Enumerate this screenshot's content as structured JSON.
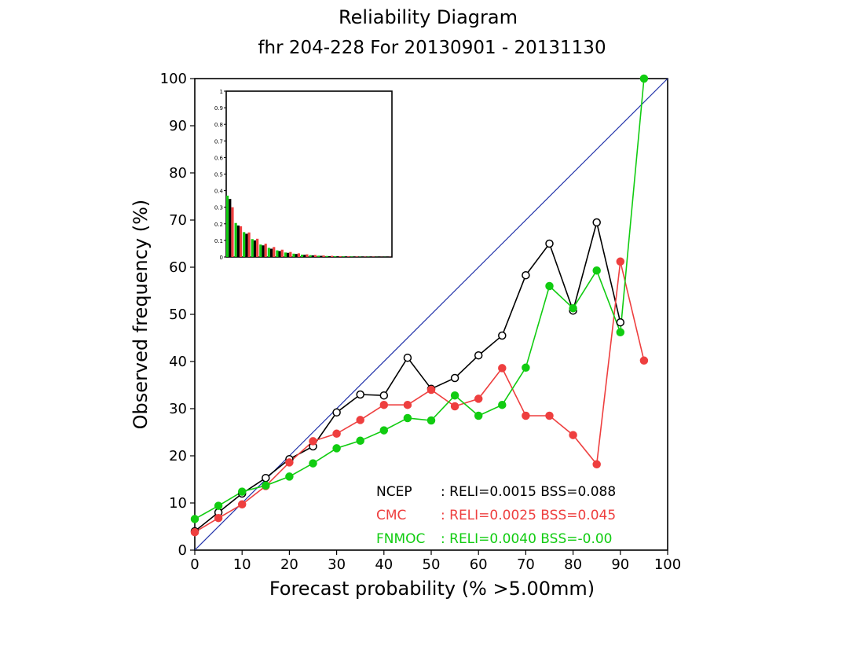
{
  "chart_data": {
    "type": "line",
    "title": "Reliability Diagram",
    "subtitle": "fhr 204-228 For 20130901 - 20131130",
    "xlabel": "Forecast probability (% >5.00mm)",
    "ylabel": "Observed frequency (%)",
    "xlim": [
      0,
      100
    ],
    "ylim": [
      0,
      100
    ],
    "xticks": [
      "0",
      "10",
      "20",
      "30",
      "40",
      "50",
      "60",
      "70",
      "80",
      "90",
      "100"
    ],
    "yticks": [
      "0",
      "10",
      "20",
      "30",
      "40",
      "50",
      "60",
      "70",
      "80",
      "90",
      "100"
    ],
    "diagonal_color": "#2233aa",
    "series": [
      {
        "name": "NCEP",
        "color": "#000000",
        "marker": "open-circle",
        "x": [
          0,
          5,
          10,
          15,
          20,
          25,
          30,
          35,
          40,
          45,
          50,
          55,
          60,
          65,
          70,
          75,
          80,
          85,
          90
        ],
        "y": [
          4,
          8,
          12,
          15.3,
          19.3,
          22,
          29.2,
          33,
          32.8,
          40.8,
          34.2,
          36.5,
          41.3,
          45.5,
          58.3,
          65,
          50.8,
          69.5,
          48.3
        ]
      },
      {
        "name": "CMC",
        "color": "#ee3f3f",
        "marker": "filled-circle",
        "x": [
          0,
          5,
          10,
          15,
          20,
          25,
          30,
          35,
          40,
          45,
          50,
          55,
          60,
          65,
          70,
          75,
          80,
          85,
          90,
          95
        ],
        "y": [
          3.8,
          6.8,
          9.7,
          13.6,
          18.6,
          23.1,
          24.7,
          27.6,
          30.8,
          30.8,
          34,
          30.5,
          32.1,
          38.6,
          28.5,
          28.5,
          24.4,
          18.2,
          61.2,
          40.2
        ]
      },
      {
        "name": "FNMOC",
        "color": "#11cc11",
        "marker": "filled-circle",
        "x": [
          0,
          5,
          10,
          15,
          20,
          25,
          30,
          35,
          40,
          45,
          50,
          55,
          60,
          65,
          70,
          75,
          80,
          85,
          90,
          95
        ],
        "y": [
          6.6,
          9.4,
          12.4,
          13.7,
          15.6,
          18.4,
          21.6,
          23.2,
          25.4,
          28,
          27.5,
          32.8,
          28.5,
          30.8,
          38.7,
          56,
          51.3,
          59.3,
          46.2,
          100
        ]
      }
    ],
    "legend": {
      "placement": "bottom-right",
      "entries": [
        {
          "name": "NCEP",
          "text": ": RELI=0.0015  BSS=0.088",
          "color": "#000000"
        },
        {
          "name": "CMC",
          "text": ": RELI=0.0025  BSS=0.045",
          "color": "#ee3f3f"
        },
        {
          "name": "FNMOC",
          "text": ": RELI=0.0040  BSS=-0.00",
          "color": "#11cc11"
        }
      ]
    },
    "inset": {
      "type": "bar",
      "placement": "top-left",
      "ylim": [
        0,
        1
      ],
      "yticks": [
        "0",
        "0.1",
        "0.2",
        "0.3",
        "0.4",
        "0.5",
        "0.6",
        "0.7",
        "0.8",
        "0.9",
        "1"
      ],
      "bins": [
        0,
        5,
        10,
        15,
        20,
        25,
        30,
        35,
        40,
        45,
        50,
        55,
        60,
        65,
        70,
        75,
        80,
        85,
        90,
        95
      ],
      "series": [
        {
          "name": "FNMOC",
          "color": "#11cc11",
          "values": [
            0.37,
            0.205,
            0.15,
            0.108,
            0.075,
            0.055,
            0.04,
            0.027,
            0.02,
            0.014,
            0.011,
            0.008,
            0.006,
            0.005,
            0.004,
            0.003,
            0.002,
            0.002,
            0.001,
            0.001
          ]
        },
        {
          "name": "NCEP",
          "color": "#000000",
          "values": [
            0.35,
            0.19,
            0.14,
            0.1,
            0.07,
            0.05,
            0.036,
            0.025,
            0.018,
            0.013,
            0.01,
            0.007,
            0.005,
            0.004,
            0.003,
            0.002,
            0.002,
            0.001,
            0.001,
            0.001
          ]
        },
        {
          "name": "CMC",
          "color": "#ee3f3f",
          "values": [
            0.3,
            0.185,
            0.148,
            0.11,
            0.08,
            0.06,
            0.044,
            0.03,
            0.022,
            0.016,
            0.012,
            0.009,
            0.007,
            0.005,
            0.004,
            0.003,
            0.002,
            0.002,
            0.001,
            0.001
          ]
        }
      ]
    }
  }
}
